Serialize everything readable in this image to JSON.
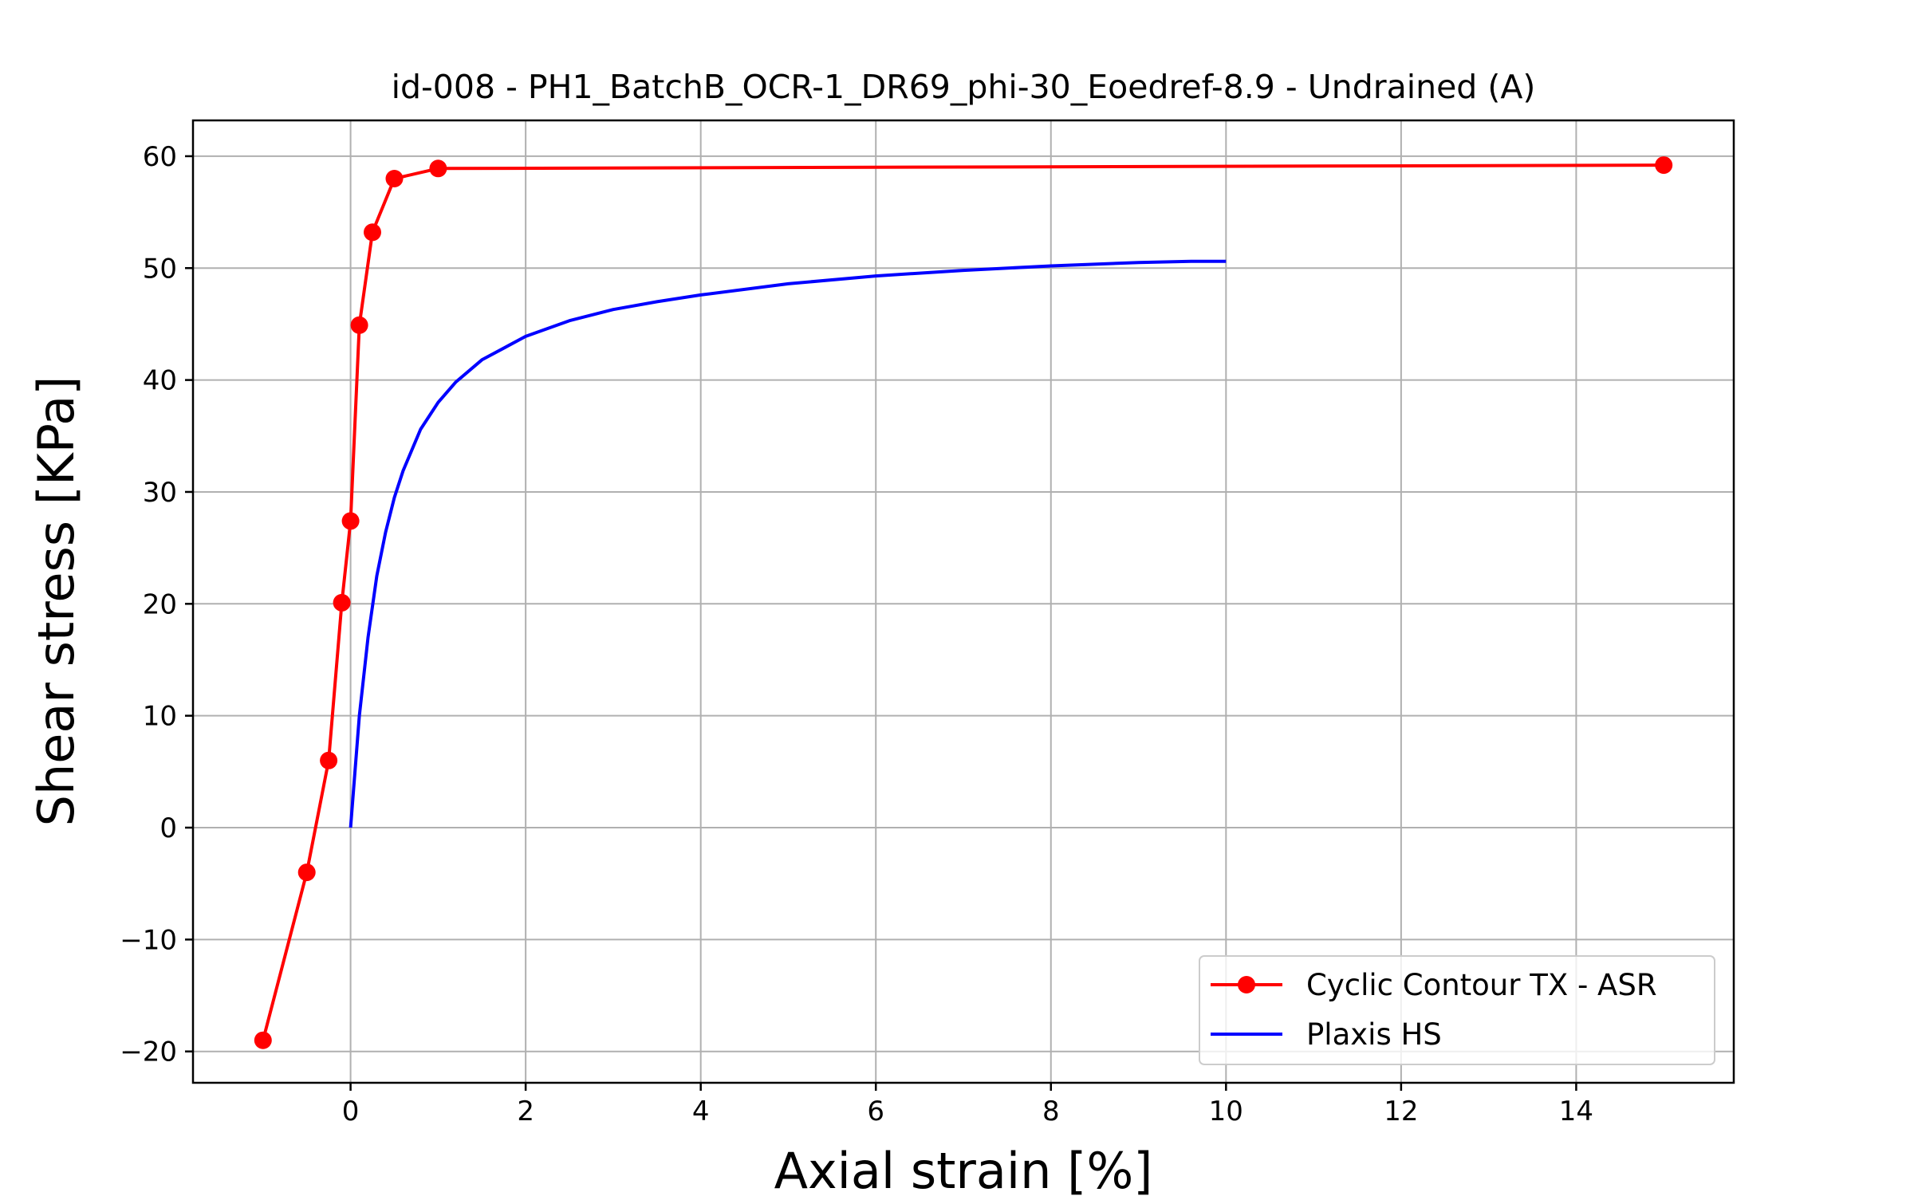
{
  "chart_data": {
    "type": "line",
    "title": "id-008 - PH1_BatchB_OCR-1_DR69_phi-30_Eoedref-8.9 - Undrained (A)",
    "xlabel": "Axial strain [%]",
    "ylabel": "Shear stress [KPa]",
    "xlim": [
      -1.8,
      15.8
    ],
    "ylim": [
      -22.8,
      63.2
    ],
    "xticks": [
      0,
      2,
      4,
      6,
      8,
      10,
      12,
      14
    ],
    "yticks": [
      -20,
      -10,
      0,
      10,
      20,
      30,
      40,
      50,
      60
    ],
    "xtick_labels": [
      "0",
      "2",
      "4",
      "6",
      "8",
      "10",
      "12",
      "14"
    ],
    "ytick_labels": [
      "−20",
      "−10",
      "0",
      "10",
      "20",
      "30",
      "40",
      "50",
      "60"
    ],
    "grid": true,
    "legend_position": "lower-right",
    "series": [
      {
        "name": "Cyclic Contour TX - ASR",
        "color": "#ff0000",
        "marker": "circle",
        "x": [
          -1.0,
          -0.5,
          -0.25,
          -0.1,
          0.0,
          0.1,
          0.25,
          0.5,
          1.0,
          15.0
        ],
        "y": [
          -19.0,
          -4.0,
          6.0,
          20.1,
          27.4,
          44.9,
          53.2,
          58.0,
          58.9,
          59.2
        ]
      },
      {
        "name": "Plaxis HS",
        "color": "#0000ff",
        "marker": "none",
        "x": [
          0.0,
          0.1,
          0.2,
          0.3,
          0.4,
          0.5,
          0.6,
          0.8,
          1.0,
          1.2,
          1.5,
          2.0,
          2.5,
          3.0,
          3.5,
          4.0,
          5.0,
          6.0,
          7.0,
          8.0,
          9.0,
          9.6,
          10.0
        ],
        "y": [
          0.0,
          10.0,
          17.0,
          22.5,
          26.4,
          29.5,
          31.9,
          35.6,
          38.0,
          39.8,
          41.8,
          43.9,
          45.3,
          46.3,
          47.0,
          47.6,
          48.6,
          49.3,
          49.8,
          50.2,
          50.5,
          50.6,
          50.6
        ]
      }
    ]
  }
}
